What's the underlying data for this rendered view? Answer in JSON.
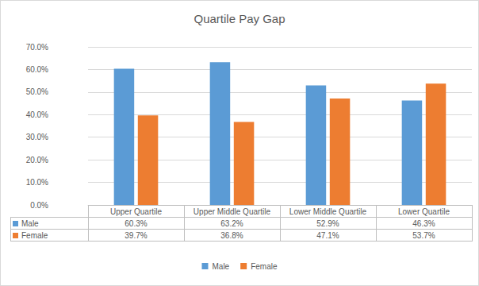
{
  "chart_data": {
    "type": "bar",
    "title": "Quartile Pay Gap",
    "categories": [
      "Upper Quartile",
      "Upper Middle Quartile",
      "Lower Middle Quartile",
      "Lower Quartile"
    ],
    "series": [
      {
        "name": "Male",
        "color": "#5b9bd5",
        "values": [
          60.3,
          63.2,
          52.9,
          46.3
        ],
        "value_labels": [
          "60.3%",
          "63.2%",
          "52.9%",
          "46.3%"
        ]
      },
      {
        "name": "Female",
        "color": "#ed7d31",
        "values": [
          39.7,
          36.8,
          47.1,
          53.7
        ],
        "value_labels": [
          "39.7%",
          "36.8%",
          "47.1%",
          "53.7%"
        ]
      }
    ],
    "ylim": [
      0,
      70
    ],
    "yticks": [
      {
        "value": 0,
        "label": "0.0%"
      },
      {
        "value": 10,
        "label": "10.0%"
      },
      {
        "value": 20,
        "label": "20.0%"
      },
      {
        "value": 30,
        "label": "30.0%"
      },
      {
        "value": 40,
        "label": "40.0%"
      },
      {
        "value": 50,
        "label": "50.0%"
      },
      {
        "value": 60,
        "label": "60.0%"
      },
      {
        "value": 70,
        "label": "70.0%"
      }
    ],
    "grid": true,
    "legend": "bottom",
    "data_labels": false
  }
}
